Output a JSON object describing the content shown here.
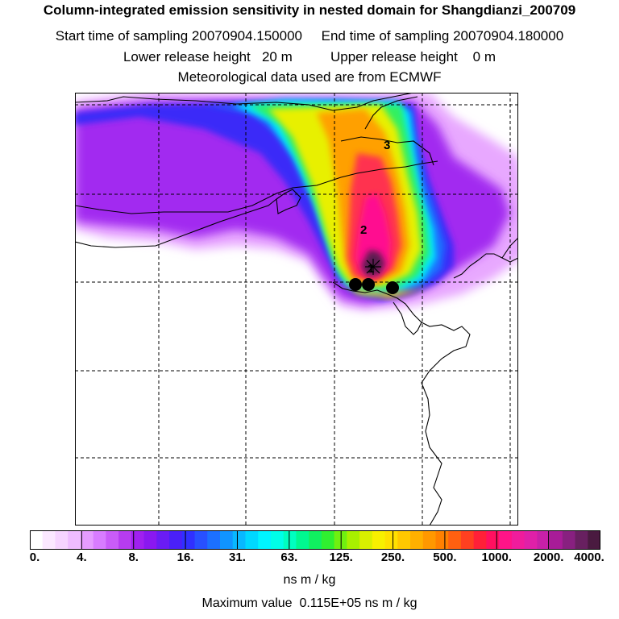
{
  "header": {
    "title": "Column-integrated emission sensitivity in nested domain for Shangdianzi_200709",
    "sampling_line": "Start time of sampling 20070904.150000     End time of sampling 20070904.180000",
    "release_line": "Lower release height   20 m          Upper release height    0 m",
    "met_line": "Meteorological data used are from ECMWF"
  },
  "map": {
    "point_labels": [
      "1",
      "2",
      "3"
    ],
    "receptor_markers": 3,
    "colors": {
      "purple_light": "#c060f0",
      "violet": "#9b2cf0",
      "blue": "#2030ff",
      "cyan": "#00e8ff",
      "green": "#30f060",
      "yellow": "#ffe800",
      "orange": "#ff9a00",
      "red": "#ff3050",
      "magenta": "#ff1090",
      "dark_plum": "#5a1a50"
    }
  },
  "colorbar": {
    "ticks": [
      "0.",
      "4.",
      "8.",
      "16.",
      "31.",
      "63.",
      "125.",
      "250.",
      "500.",
      "1000.",
      "2000.",
      "4000."
    ],
    "units": "ns m / kg",
    "colors": [
      "#ffffff",
      "#fbe8ff",
      "#f6d4ff",
      "#eebcff",
      "#e59cff",
      "#d87cff",
      "#c95cf8",
      "#b63cf0",
      "#a020f0",
      "#8a18f0",
      "#6a1cf4",
      "#4a20f8",
      "#3030ff",
      "#2850ff",
      "#1c70ff",
      "#1094ff",
      "#08b8ff",
      "#00d8ff",
      "#00f4ff",
      "#00ffe8",
      "#00ffc0",
      "#00f890",
      "#10f060",
      "#30f030",
      "#70f010",
      "#a8f000",
      "#d8f000",
      "#f8f000",
      "#ffe000",
      "#ffc800",
      "#ffb000",
      "#ff9800",
      "#ff8000",
      "#ff6010",
      "#ff4020",
      "#ff2038",
      "#ff1060",
      "#ff1488",
      "#f01c9c",
      "#e020a8",
      "#c820a8",
      "#a81c98",
      "#882080",
      "#682060",
      "#4a1a40"
    ]
  },
  "footer": {
    "max_value": "Maximum value  0.115E+05 ns m / kg"
  }
}
